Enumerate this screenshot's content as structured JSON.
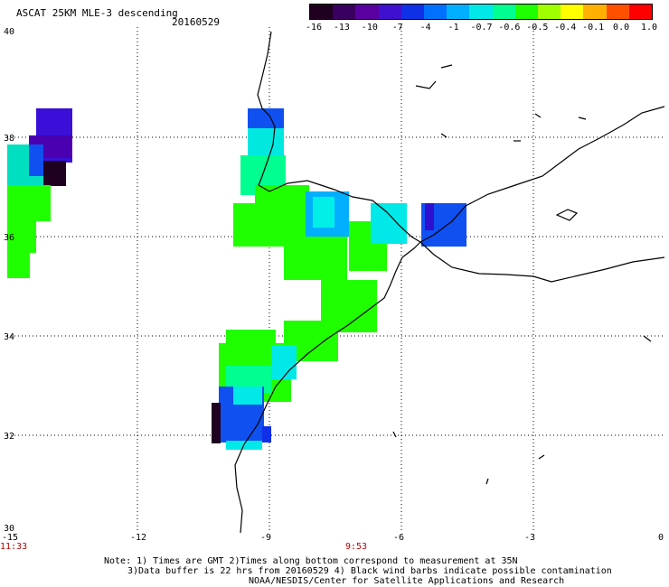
{
  "header": {
    "title": "ASCAT 25KM MLE-3 descending",
    "date": "20160529"
  },
  "colorbar": {
    "labels": [
      "-16",
      "-13",
      "-10",
      "-7",
      "-4",
      "-1",
      "-0.7",
      "-0.6",
      "-0.5",
      "-0.4",
      "-0.1",
      "0.0",
      "1.0"
    ],
    "colors": [
      "#200020",
      "#3a0060",
      "#5a00a0",
      "#4010d0",
      "#1030e8",
      "#0070ff",
      "#00b0ff",
      "#00e8e8",
      "#00ff90",
      "#20ff00",
      "#a0ff00",
      "#ffff00",
      "#ffb000",
      "#ff5000",
      "#ff0000"
    ]
  },
  "axes": {
    "lat_labels": [
      "40",
      "38",
      "36",
      "34",
      "32",
      "30"
    ],
    "lon_labels": [
      "-15",
      "-12",
      "-9",
      "-6",
      "-3",
      "0"
    ]
  },
  "times": {
    "left": "11:33",
    "center": "9:53"
  },
  "notes": {
    "line1": "Note: 1) Times are GMT 2)Times along bottom correspond to measurement at 35N",
    "line2": "3)Data buffer is 22 hrs from 20160529 4) Black wind barbs indicate possible contamination",
    "line3": "NOAA/NESDIS/Center for Satellite Applications and Research"
  },
  "map": {
    "lon_range": [
      -15,
      0
    ],
    "lat_range": [
      30,
      40
    ],
    "grid": "dotted"
  }
}
